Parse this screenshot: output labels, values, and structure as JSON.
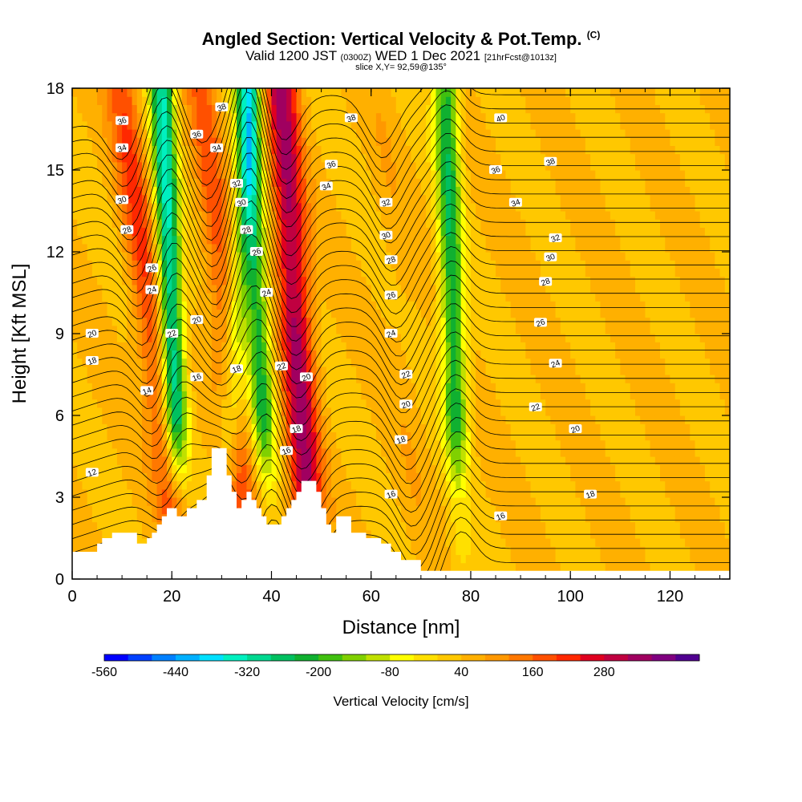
{
  "chart_data": {
    "type": "heatmap",
    "title": "Angled Section: Vertical Velocity & Pot.Temp.",
    "title_suffix": "(C)",
    "subtitle_valid": "Valid 1200 JST",
    "subtitle_utc": "(0300Z)",
    "subtitle_date": "WED 1 Dec 2021",
    "subtitle_fcst": "[21hrFcst@1013z]",
    "slice_label": "slice X,Y= 92,59@135°",
    "xlabel": "Distance [nm]",
    "ylabel": "Height [Kft MSL]",
    "xlim": [
      0,
      132
    ],
    "ylim": [
      0,
      18
    ],
    "xticks": [
      "0",
      "20",
      "40",
      "60",
      "80",
      "100",
      "120"
    ],
    "yticks": [
      "0",
      "3",
      "6",
      "9",
      "12",
      "15",
      "18"
    ],
    "colorbar": {
      "title": "Vertical Velocity [cm/s]",
      "tick_labels": [
        "-560",
        "-440",
        "-320",
        "-200",
        "-80",
        "40",
        "160",
        "280"
      ],
      "levels_min": -560,
      "level_step": 40,
      "colors": [
        "#0000ff",
        "#0040ff",
        "#0080ff",
        "#00b0ff",
        "#00e0ff",
        "#00f0c0",
        "#00d890",
        "#00c060",
        "#10b030",
        "#40c010",
        "#80d000",
        "#c0e000",
        "#ffff00",
        "#ffe000",
        "#ffc800",
        "#ffb000",
        "#ff9800",
        "#ff7800",
        "#ff5000",
        "#ff2800",
        "#e00020",
        "#c00040",
        "#a00060",
        "#800080",
        "#500090"
      ]
    },
    "updrafts": [
      {
        "x_top": 10,
        "x_bottom": 22,
        "w": 200
      },
      {
        "x_top": 26,
        "x_bottom": 36,
        "w": 170
      },
      {
        "x_top": 42,
        "x_bottom": 48,
        "w": 330
      },
      {
        "x_top": 62,
        "x_bottom": 70,
        "w": 60
      }
    ],
    "downdrafts": [
      {
        "x_top": 18,
        "x_bottom": 22,
        "w": -330
      },
      {
        "x_top": 35,
        "x_bottom": 40,
        "w": -220
      },
      {
        "x_top": 75,
        "x_bottom": 78,
        "w": -230
      },
      {
        "x_top": 36,
        "x_bottom": 30,
        "w": -130
      }
    ],
    "theta_contour_labels": [
      {
        "x": 10,
        "y": 16.8,
        "t": "36"
      },
      {
        "x": 10,
        "y": 15.8,
        "t": "34"
      },
      {
        "x": 10,
        "y": 13.9,
        "t": "30"
      },
      {
        "x": 11,
        "y": 12.8,
        "t": "28"
      },
      {
        "x": 16,
        "y": 11.4,
        "t": "26"
      },
      {
        "x": 16,
        "y": 10.6,
        "t": "24"
      },
      {
        "x": 4,
        "y": 9.0,
        "t": "20"
      },
      {
        "x": 4,
        "y": 8.0,
        "t": "18"
      },
      {
        "x": 15,
        "y": 6.9,
        "t": "14"
      },
      {
        "x": 4,
        "y": 3.9,
        "t": "12"
      },
      {
        "x": 20,
        "y": 9.0,
        "t": "22"
      },
      {
        "x": 25,
        "y": 9.5,
        "t": "20"
      },
      {
        "x": 25,
        "y": 7.4,
        "t": "16"
      },
      {
        "x": 33,
        "y": 7.7,
        "t": "18"
      },
      {
        "x": 25,
        "y": 16.3,
        "t": "36"
      },
      {
        "x": 30,
        "y": 17.3,
        "t": "38"
      },
      {
        "x": 29,
        "y": 15.8,
        "t": "34"
      },
      {
        "x": 33,
        "y": 14.5,
        "t": "32"
      },
      {
        "x": 34,
        "y": 13.8,
        "t": "30"
      },
      {
        "x": 35,
        "y": 12.8,
        "t": "28"
      },
      {
        "x": 37,
        "y": 12.0,
        "t": "26"
      },
      {
        "x": 39,
        "y": 10.5,
        "t": "24"
      },
      {
        "x": 42,
        "y": 7.8,
        "t": "22"
      },
      {
        "x": 47,
        "y": 7.4,
        "t": "20"
      },
      {
        "x": 45,
        "y": 5.5,
        "t": "18"
      },
      {
        "x": 43,
        "y": 4.7,
        "t": "16"
      },
      {
        "x": 56,
        "y": 16.9,
        "t": "38"
      },
      {
        "x": 52,
        "y": 15.2,
        "t": "36"
      },
      {
        "x": 51,
        "y": 14.4,
        "t": "34"
      },
      {
        "x": 63,
        "y": 13.8,
        "t": "32"
      },
      {
        "x": 63,
        "y": 12.6,
        "t": "30"
      },
      {
        "x": 64,
        "y": 11.7,
        "t": "28"
      },
      {
        "x": 64,
        "y": 10.4,
        "t": "26"
      },
      {
        "x": 64,
        "y": 9.0,
        "t": "24"
      },
      {
        "x": 67,
        "y": 7.5,
        "t": "22"
      },
      {
        "x": 67,
        "y": 6.4,
        "t": "20"
      },
      {
        "x": 66,
        "y": 5.1,
        "t": "18"
      },
      {
        "x": 64,
        "y": 3.1,
        "t": "16"
      },
      {
        "x": 86,
        "y": 16.9,
        "t": "40"
      },
      {
        "x": 96,
        "y": 15.3,
        "t": "38"
      },
      {
        "x": 85,
        "y": 15.0,
        "t": "36"
      },
      {
        "x": 89,
        "y": 13.8,
        "t": "34"
      },
      {
        "x": 97,
        "y": 12.5,
        "t": "32"
      },
      {
        "x": 96,
        "y": 11.8,
        "t": "30"
      },
      {
        "x": 95,
        "y": 10.9,
        "t": "28"
      },
      {
        "x": 94,
        "y": 9.4,
        "t": "26"
      },
      {
        "x": 97,
        "y": 7.9,
        "t": "24"
      },
      {
        "x": 93,
        "y": 6.3,
        "t": "22"
      },
      {
        "x": 101,
        "y": 5.5,
        "t": "20"
      },
      {
        "x": 104,
        "y": 3.1,
        "t": "18"
      },
      {
        "x": 86,
        "y": 2.3,
        "t": "16"
      }
    ],
    "terrain_profile": [
      [
        0,
        1.0
      ],
      [
        5,
        1.0
      ],
      [
        5,
        1.3
      ],
      [
        6,
        1.3
      ],
      [
        6,
        1.5
      ],
      [
        8,
        1.5
      ],
      [
        8,
        1.7
      ],
      [
        13,
        1.7
      ],
      [
        13,
        1.3
      ],
      [
        15,
        1.3
      ],
      [
        15,
        1.5
      ],
      [
        16,
        1.5
      ],
      [
        16,
        1.7
      ],
      [
        17,
        1.7
      ],
      [
        17,
        2.0
      ],
      [
        18,
        2.0
      ],
      [
        18,
        2.3
      ],
      [
        19,
        2.3
      ],
      [
        19,
        2.6
      ],
      [
        21,
        2.6
      ],
      [
        21,
        2.3
      ],
      [
        23,
        2.3
      ],
      [
        23,
        2.6
      ],
      [
        25,
        2.6
      ],
      [
        25,
        2.9
      ],
      [
        27,
        2.9
      ],
      [
        27,
        3.8
      ],
      [
        28,
        3.8
      ],
      [
        28,
        4.8
      ],
      [
        31,
        4.8
      ],
      [
        31,
        3.8
      ],
      [
        32,
        3.8
      ],
      [
        32,
        3.2
      ],
      [
        33,
        3.2
      ],
      [
        33,
        2.6
      ],
      [
        34,
        2.6
      ],
      [
        34,
        2.9
      ],
      [
        35,
        2.9
      ],
      [
        35,
        3.2
      ],
      [
        36,
        3.2
      ],
      [
        36,
        2.9
      ],
      [
        37,
        2.9
      ],
      [
        37,
        2.6
      ],
      [
        38,
        2.6
      ],
      [
        38,
        2.3
      ],
      [
        39,
        2.3
      ],
      [
        39,
        2.0
      ],
      [
        42,
        2.0
      ],
      [
        42,
        2.3
      ],
      [
        43,
        2.3
      ],
      [
        43,
        2.6
      ],
      [
        44,
        2.6
      ],
      [
        44,
        2.9
      ],
      [
        45,
        2.9
      ],
      [
        45,
        3.2
      ],
      [
        46,
        3.2
      ],
      [
        46,
        3.6
      ],
      [
        49,
        3.6
      ],
      [
        49,
        3.2
      ],
      [
        50,
        3.2
      ],
      [
        50,
        2.6
      ],
      [
        51,
        2.6
      ],
      [
        51,
        2.0
      ],
      [
        52,
        2.0
      ],
      [
        52,
        1.7
      ],
      [
        53,
        1.7
      ],
      [
        53,
        2.3
      ],
      [
        56,
        2.3
      ],
      [
        56,
        1.7
      ],
      [
        59,
        1.7
      ],
      [
        59,
        1.5
      ],
      [
        62,
        1.5
      ],
      [
        62,
        1.3
      ],
      [
        64,
        1.3
      ],
      [
        64,
        1.0
      ],
      [
        66,
        1.0
      ],
      [
        66,
        0.7
      ],
      [
        70,
        0.7
      ],
      [
        70,
        0.3
      ],
      [
        132,
        0.3
      ],
      [
        132,
        0
      ]
    ]
  }
}
